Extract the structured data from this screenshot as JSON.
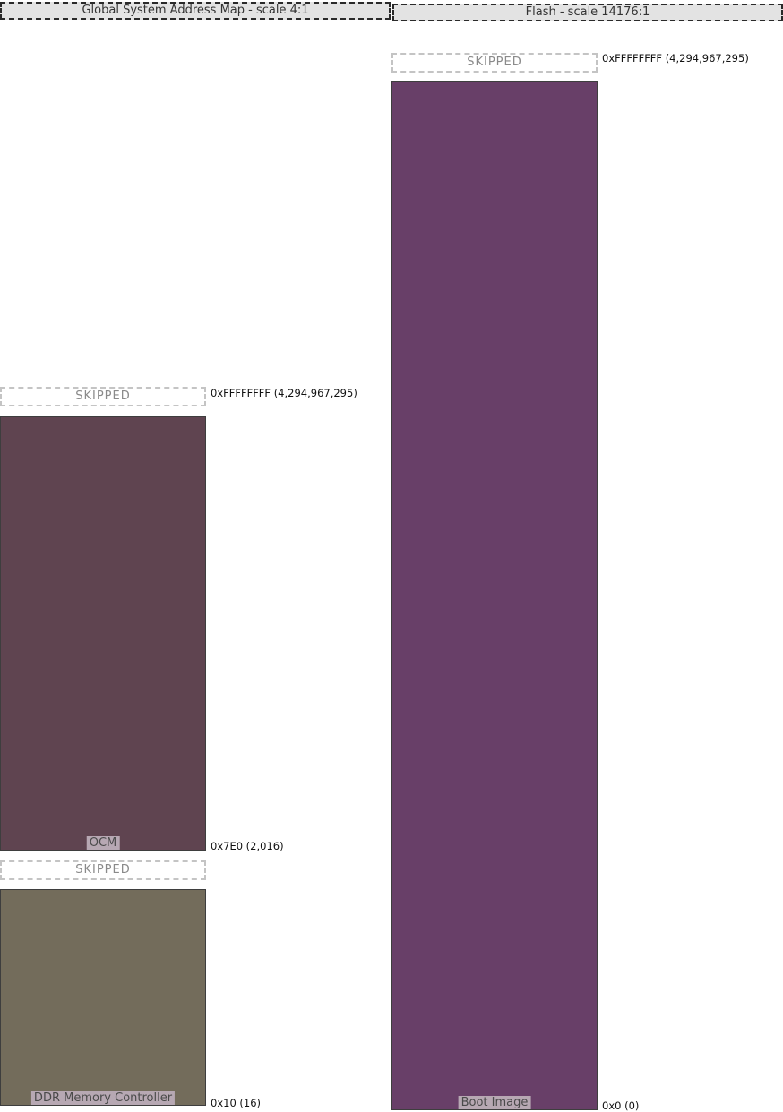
{
  "maps": [
    {
      "title": "Global System Address Map - scale 4:1",
      "skipped_label": "SKIPPED",
      "regions": [
        {
          "name": "OCM",
          "color": "#5f4450"
        },
        {
          "name": "DDR Memory Controller",
          "color": "#736c5b"
        }
      ],
      "addresses": [
        "0xFFFFFFFF (4,294,967,295)",
        "0x7E0 (2,016)",
        "0x10 (16)"
      ]
    },
    {
      "title": "Flash - scale 14176:1",
      "skipped_label": "SKIPPED",
      "regions": [
        {
          "name": "Boot Image",
          "color": "#683f68"
        }
      ],
      "addresses": [
        "0xFFFFFFFF (4,294,967,295)",
        "0x0 (0)"
      ]
    }
  ]
}
